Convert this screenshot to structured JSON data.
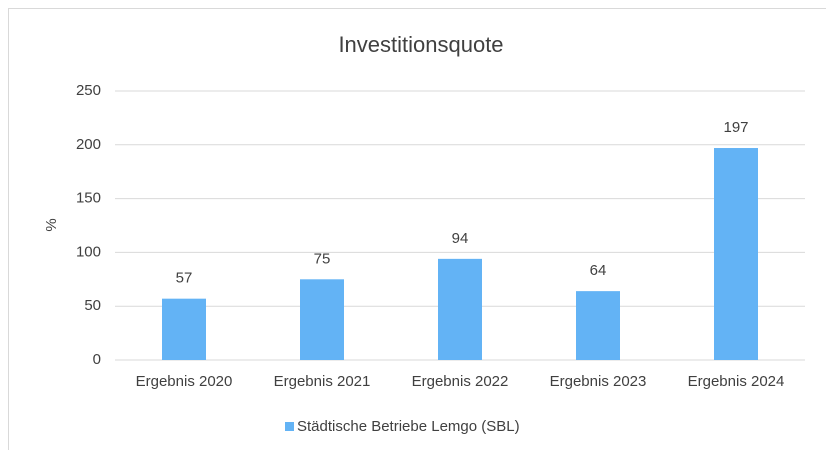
{
  "chart_data": {
    "type": "bar",
    "title": "Investitionsquote",
    "y_label": "%",
    "categories": [
      "Ergebnis 2020",
      "Ergebnis 2021",
      "Ergebnis 2022",
      "Ergebnis 2023",
      "Ergebnis 2024"
    ],
    "series": [
      {
        "name": "Städtische Betriebe Lemgo (SBL)",
        "color": "#63b3f5",
        "values": [
          57,
          75,
          94,
          64,
          197
        ]
      }
    ],
    "ylim": [
      0,
      250
    ],
    "yticks": [
      0,
      50,
      100,
      150,
      200,
      250
    ],
    "grid": true,
    "legend": "bottom"
  }
}
